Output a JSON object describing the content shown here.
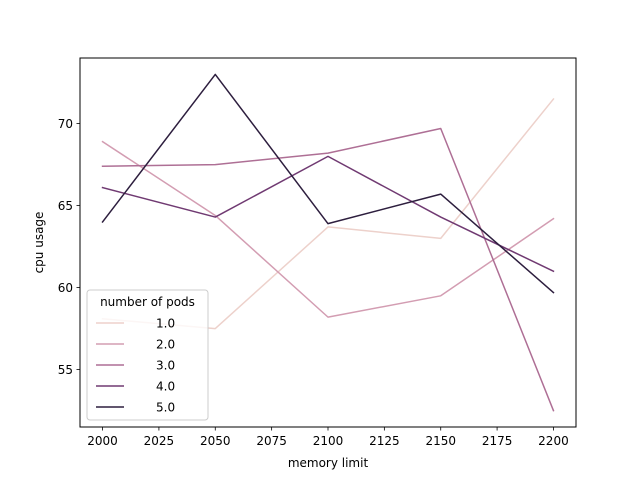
{
  "chart_data": {
    "type": "line",
    "xlabel": "memory limit",
    "ylabel": "cpu usage",
    "x": [
      2000,
      2050,
      2100,
      2150,
      2200
    ],
    "xticks": [
      "2000",
      "2025",
      "2050",
      "2075",
      "2100",
      "2125",
      "2150",
      "2175",
      "2200"
    ],
    "yticks": [
      "55",
      "60",
      "65",
      "70"
    ],
    "xlim": [
      1990,
      2210
    ],
    "ylim": [
      51.5,
      74.0
    ],
    "grid": false,
    "legend": {
      "title": "number of pods",
      "placement": "lower-left"
    },
    "series": [
      {
        "name": "1.0",
        "color": "#edd1cb",
        "values": [
          58.1,
          57.5,
          63.7,
          63.0,
          71.5
        ]
      },
      {
        "name": "2.0",
        "color": "#d39db2",
        "values": [
          68.9,
          64.4,
          58.2,
          59.5,
          64.2
        ]
      },
      {
        "name": "3.0",
        "color": "#ae6f95",
        "values": [
          67.4,
          67.5,
          68.2,
          69.7,
          52.5
        ]
      },
      {
        "name": "4.0",
        "color": "#703a72",
        "values": [
          66.1,
          64.3,
          68.0,
          64.3,
          61.0
        ]
      },
      {
        "name": "5.0",
        "color": "#2d1e3e",
        "values": [
          64.0,
          73.0,
          63.9,
          65.7,
          59.7
        ]
      }
    ]
  }
}
